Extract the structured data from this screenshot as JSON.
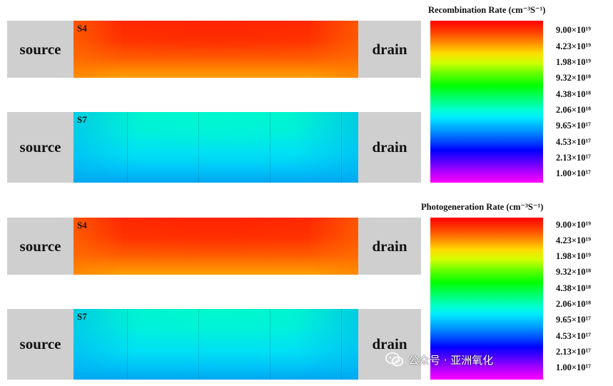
{
  "devices": [
    {
      "label": "S4",
      "source": "source",
      "drain": "drain"
    },
    {
      "label": "S7",
      "source": "source",
      "drain": "drain"
    },
    {
      "label": "S4",
      "source": "source",
      "drain": "drain"
    },
    {
      "label": "S7",
      "source": "source",
      "drain": "drain"
    }
  ],
  "colorbars": [
    {
      "title": "Recombination Rate (cm⁻³S⁻¹)",
      "ticks": [
        "9.00×10¹⁹",
        "4.23×10¹⁹",
        "1.98×10¹⁹",
        "9.32×10¹⁸",
        "4.38×10¹⁸",
        "2.06×10¹⁸",
        "9.65×10¹⁷",
        "4.53×10¹⁷",
        "2.13×10¹⁷",
        "1.00×10¹⁷"
      ]
    },
    {
      "title": "Photogeneration Rate (cm⁻³S⁻¹)",
      "ticks": [
        "9.00×10¹⁹",
        "4.23×10¹⁹",
        "1.98×10¹⁹",
        "9.32×10¹⁸",
        "4.38×10¹⁸",
        "2.06×10¹⁸",
        "9.65×10¹⁷",
        "4.53×10¹⁷",
        "2.13×10¹⁷",
        "1.00×10¹⁷"
      ]
    }
  ],
  "watermark": {
    "text": "公众号 · 亚洲氧化",
    "icon": "wechat-icon"
  },
  "colors": {
    "pad": "#cfcfcf",
    "hot_channel": "#ff3000",
    "cool_channel": "#00e8e0"
  }
}
